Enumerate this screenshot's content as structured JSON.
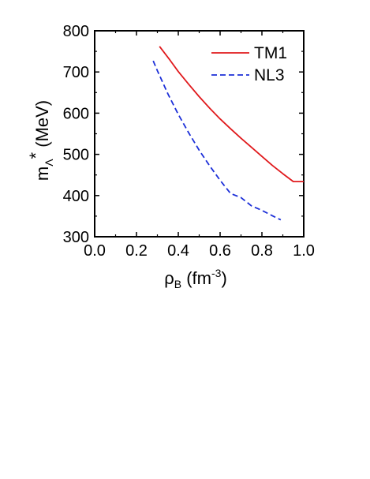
{
  "chart_data": {
    "type": "line",
    "xlabel": {
      "symbol": "ρ",
      "sub": "B",
      "unit": " (fm",
      "exp": "-3",
      "close": ")"
    },
    "ylabel": {
      "symbol": "m",
      "sub": "Λ",
      "sup": "*",
      "unit": " (MeV)"
    },
    "xlim": [
      0.0,
      1.0
    ],
    "ylim": [
      300,
      800
    ],
    "xticks": [
      "0.0",
      "0.2",
      "0.4",
      "0.6",
      "0.8",
      "1.0"
    ],
    "yticks": [
      "300",
      "400",
      "500",
      "600",
      "700",
      "800"
    ],
    "legend_position": "top-right",
    "grid": false,
    "series": [
      {
        "name": "TM1",
        "color": "#e0191c",
        "dash": "solid",
        "x": [
          0.31,
          0.36,
          0.4,
          0.45,
          0.5,
          0.55,
          0.6,
          0.65,
          0.7,
          0.75,
          0.8,
          0.85,
          0.9,
          0.95,
          1.0
        ],
        "y": [
          762,
          729,
          701,
          670,
          640,
          612,
          586,
          562,
          539,
          517,
          495,
          473,
          453,
          434,
          434
        ]
      },
      {
        "name": "NL3",
        "color": "#1c2fd8",
        "dash": "dashed",
        "x": [
          0.28,
          0.3,
          0.35,
          0.4,
          0.45,
          0.5,
          0.55,
          0.6,
          0.65,
          0.7,
          0.75,
          0.8,
          0.85,
          0.89
        ],
        "y": [
          727,
          703,
          647,
          597,
          552,
          510,
          472,
          437,
          405,
          395,
          375,
          364,
          351,
          341
        ]
      }
    ]
  }
}
